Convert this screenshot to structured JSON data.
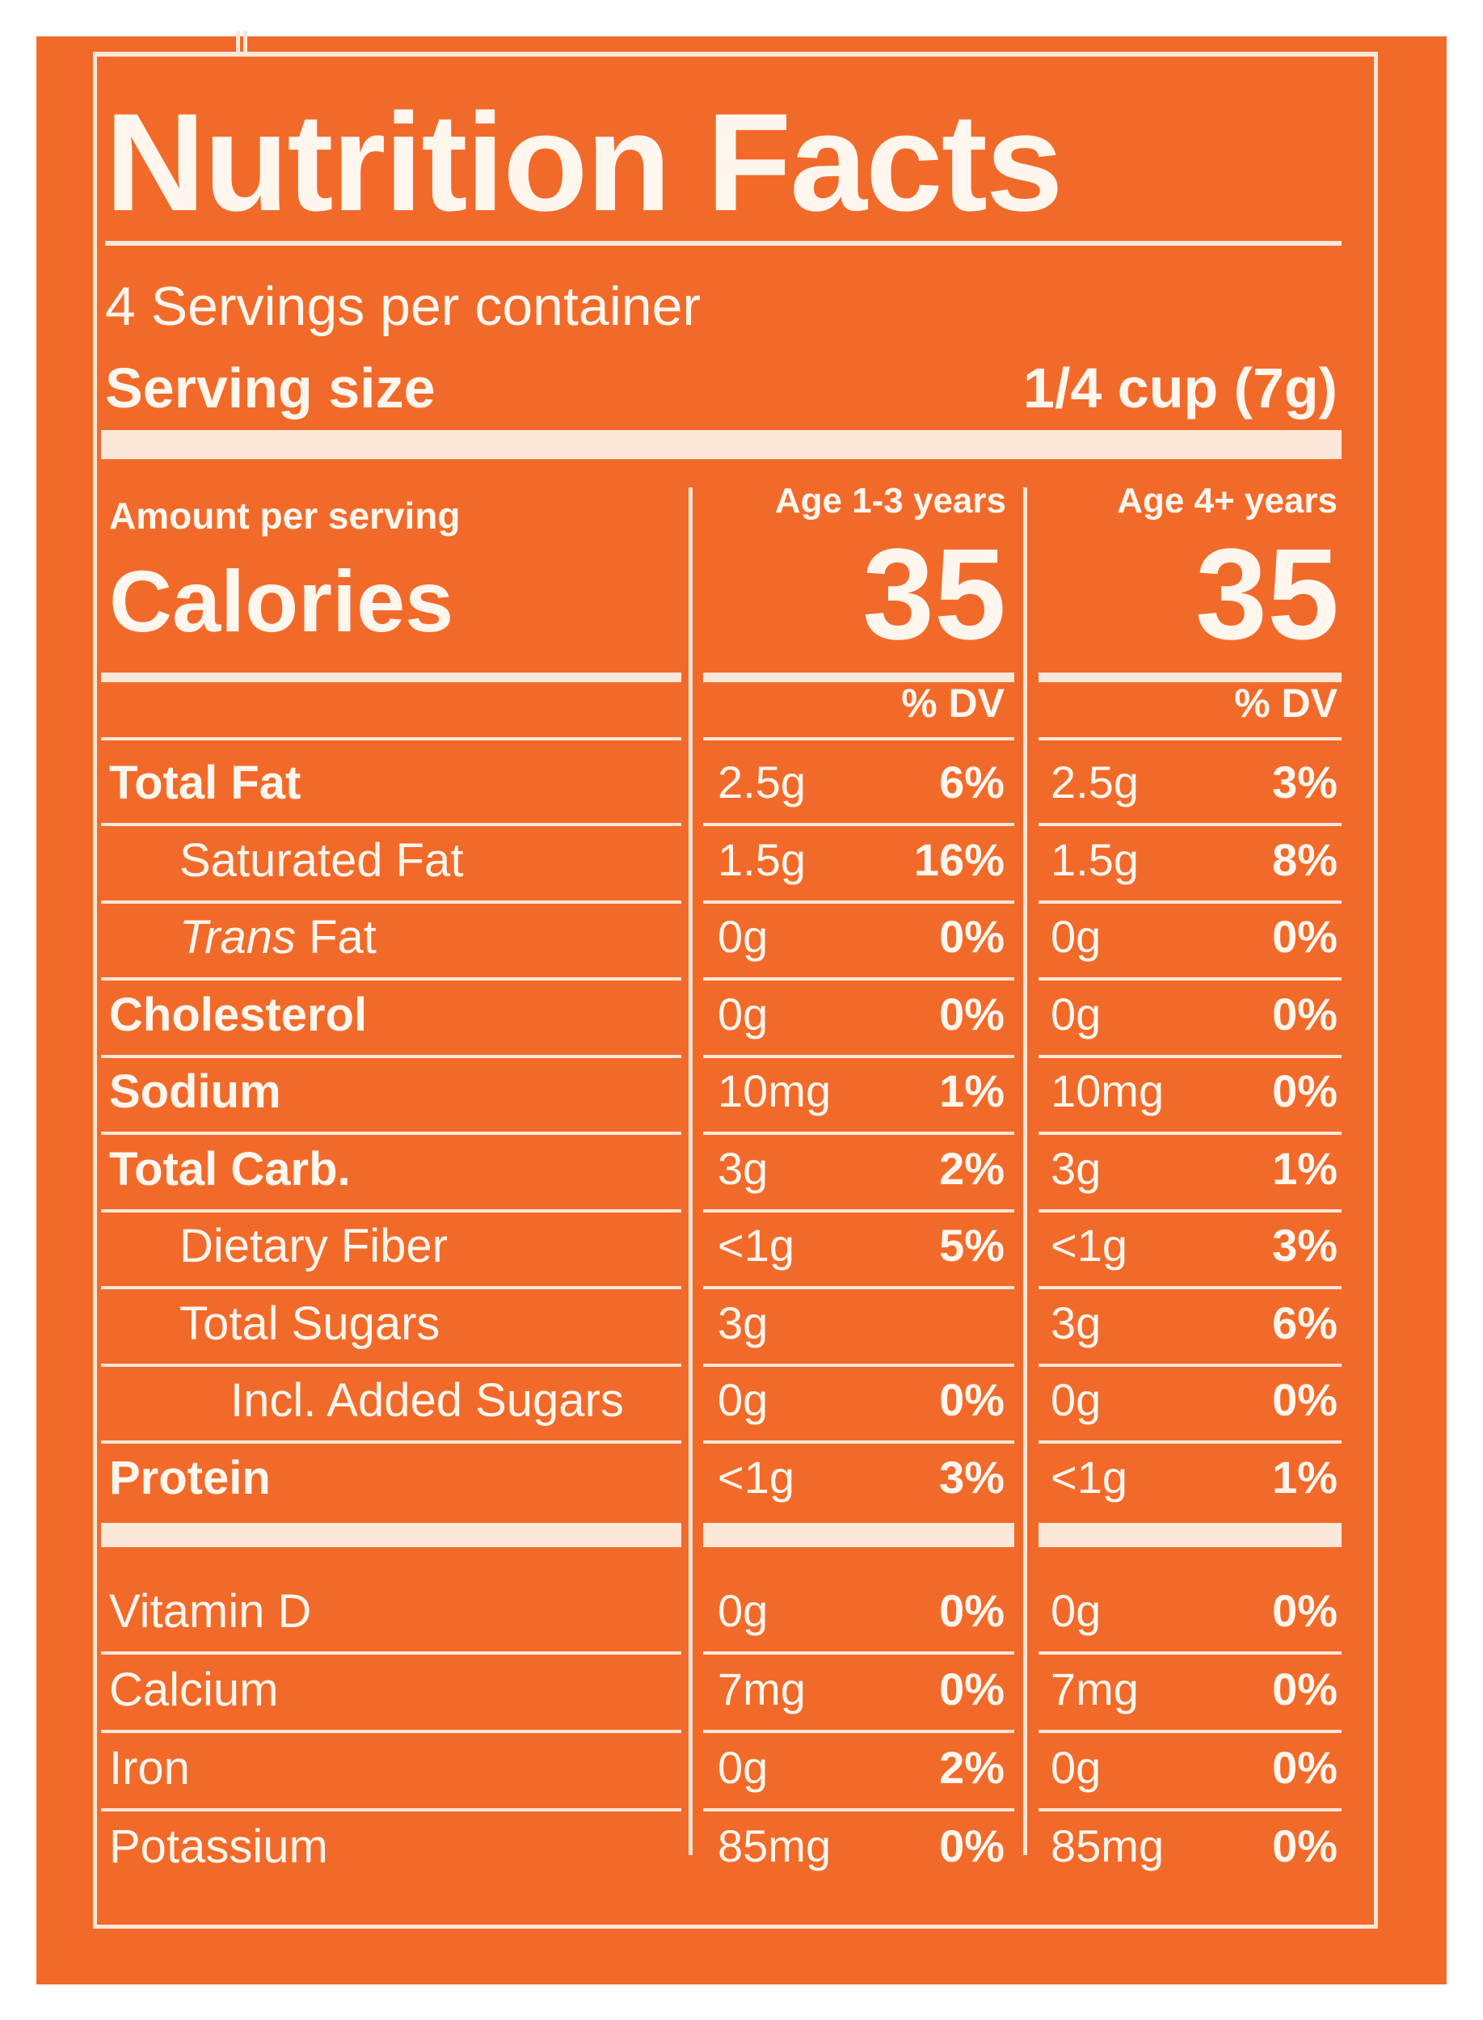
{
  "label": {
    "title": "Nutrition Facts",
    "servings_per_container": "4 Servings per container",
    "serving_size_label": "Serving size",
    "serving_size_value": "1/4 cup (7g)",
    "amount_per_serving": "Amount per serving",
    "calories_label": "Calories",
    "columns": [
      {
        "age": "Age 1-3 years",
        "calories": "35",
        "dv_header": "% DV"
      },
      {
        "age": "Age 4+ years",
        "calories": "35",
        "dv_header": "% DV"
      }
    ],
    "nutrients": [
      {
        "name": "Total Fat",
        "bold": true,
        "indent": 0,
        "c1_amt": "2.5g",
        "c1_dv": "6%",
        "c2_amt": "2.5g",
        "c2_dv": "3%"
      },
      {
        "name": "Saturated Fat",
        "bold": false,
        "indent": 1,
        "c1_amt": "1.5g",
        "c1_dv": "16%",
        "c2_amt": "1.5g",
        "c2_dv": "8%"
      },
      {
        "name_italic": "Trans",
        "name": " Fat",
        "bold": false,
        "indent": 1,
        "c1_amt": "0g",
        "c1_dv": "0%",
        "c2_amt": "0g",
        "c2_dv": "0%"
      },
      {
        "name": "Cholesterol",
        "bold": true,
        "indent": 0,
        "c1_amt": "0g",
        "c1_dv": "0%",
        "c2_amt": "0g",
        "c2_dv": "0%"
      },
      {
        "name": "Sodium",
        "bold": true,
        "indent": 0,
        "c1_amt": "10mg",
        "c1_dv": "1%",
        "c2_amt": "10mg",
        "c2_dv": "0%"
      },
      {
        "name": "Total Carb.",
        "bold": true,
        "indent": 0,
        "c1_amt": "3g",
        "c1_dv": "2%",
        "c2_amt": "3g",
        "c2_dv": "1%"
      },
      {
        "name": "Dietary Fiber",
        "bold": false,
        "indent": 1,
        "c1_amt": "<1g",
        "c1_dv": "5%",
        "c2_amt": "<1g",
        "c2_dv": "3%"
      },
      {
        "name": "Total Sugars",
        "bold": false,
        "indent": 1,
        "c1_amt": "3g",
        "c1_dv": "",
        "c2_amt": "3g",
        "c2_dv": "6%"
      },
      {
        "name": "Incl. Added Sugars",
        "bold": false,
        "indent": 2,
        "c1_amt": "0g",
        "c1_dv": "0%",
        "c2_amt": "0g",
        "c2_dv": "0%"
      },
      {
        "name": "Protein",
        "bold": true,
        "indent": 0,
        "c1_amt": "<1g",
        "c1_dv": "3%",
        "c2_amt": "<1g",
        "c2_dv": "1%"
      }
    ],
    "vitamins": [
      {
        "name": "Vitamin D",
        "c1_amt": "0g",
        "c1_dv": "0%",
        "c2_amt": "0g",
        "c2_dv": "0%"
      },
      {
        "name": "Calcium",
        "c1_amt": "7mg",
        "c1_dv": "0%",
        "c2_amt": "7mg",
        "c2_dv": "0%"
      },
      {
        "name": "Iron",
        "c1_amt": "0g",
        "c1_dv": "2%",
        "c2_amt": "0g",
        "c2_dv": "0%"
      },
      {
        "name": "Potassium",
        "c1_amt": "85mg",
        "c1_dv": "0%",
        "c2_amt": "85mg",
        "c2_dv": "0%"
      }
    ]
  },
  "colors": {
    "background": "#f26a2a",
    "text": "#fff6ee"
  }
}
